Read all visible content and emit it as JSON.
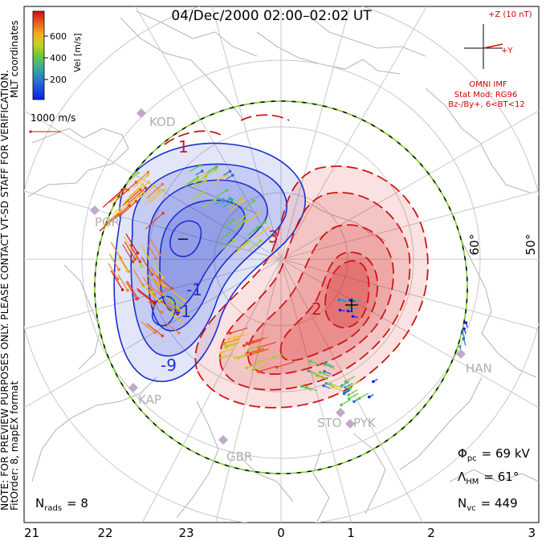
{
  "title": "04/Dec/2000 02:00–02:02 UT",
  "coordinate_system": "MLT coordinates",
  "note_text": "NOTE: FOR PREVIEW PURPOSES ONLY. PLEASE CONTACT VT-SD STAFF FOR VERIFICATION.",
  "fit_text": "FitOrder: 8, mapEX format",
  "colorbar": {
    "label": "Vel [m/s]",
    "ticks": [
      "600",
      "400",
      "200"
    ],
    "colors": [
      "#0a1ef0",
      "#2a6fd0",
      "#36a8a0",
      "#5cc842",
      "#a8d020",
      "#f0c020",
      "#f08020",
      "#e84020",
      "#d01010"
    ]
  },
  "reference_vector": {
    "label": "1000 m/s"
  },
  "imf": {
    "z_label": "+Z (10 nT)",
    "y_label": "+Y",
    "source": "OMNI IMF",
    "model": "Stat Mod: RG96",
    "condition": "Bz-/By+, 6<BT<12"
  },
  "stats": {
    "phi_pc": {
      "symbol": "Φ",
      "sub": "pc",
      "text": "= 69 kV"
    },
    "lambda_hm": {
      "symbol": "Λ",
      "sub": "HM",
      "text": "= 61°"
    },
    "n_vc": {
      "symbol": "N",
      "sub": "vc",
      "text": "= 449"
    },
    "n_rads": {
      "symbol": "N",
      "sub": "rads",
      "text": "= 8"
    }
  },
  "latitude_labels": [
    "60°",
    "50°"
  ],
  "contour_labels": [
    "-9",
    "-1",
    "-1",
    "3",
    "2",
    "1"
  ],
  "stations": [
    "KOD",
    "PGR",
    "KAP",
    "GBR",
    "STO",
    "PYK",
    "HAN"
  ],
  "colors": {
    "negative": "#1a2fd0",
    "positive": "#d21414",
    "boundary_green": "#7ad020"
  },
  "chart_data": {
    "type": "polar-convection-map",
    "mlt_axis_labels": [
      "21",
      "22",
      "23",
      "0",
      "1",
      "2",
      "3"
    ],
    "latitude_circles_deg": [
      80,
      70,
      60,
      50
    ],
    "cross_polar_cap_potential_kV": 69,
    "heppner_maynard_boundary_deg": 61,
    "num_vectors": 449,
    "num_radars": 8,
    "fit_order": 8,
    "velocity_scale_ms": [
      0,
      700
    ]
  }
}
